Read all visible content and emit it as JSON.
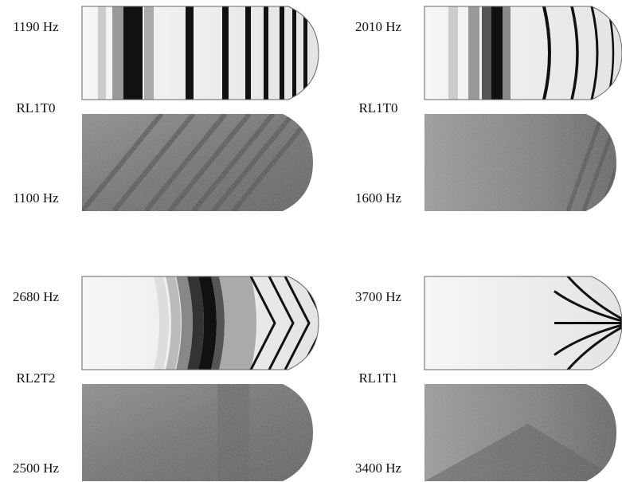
{
  "panels": [
    {
      "simulated_frequency": "1190 Hz",
      "mode": "RL1T0",
      "measured_frequency": "1100 Hz"
    },
    {
      "simulated_frequency": "2010 Hz",
      "mode": "RL1T0",
      "measured_frequency": "1600 Hz"
    },
    {
      "simulated_frequency": "2680 Hz",
      "mode": "RL2T2",
      "measured_frequency": "2500 Hz"
    },
    {
      "simulated_frequency": "3700 Hz",
      "mode": "RL1T1",
      "measured_frequency": "3400 Hz"
    }
  ]
}
